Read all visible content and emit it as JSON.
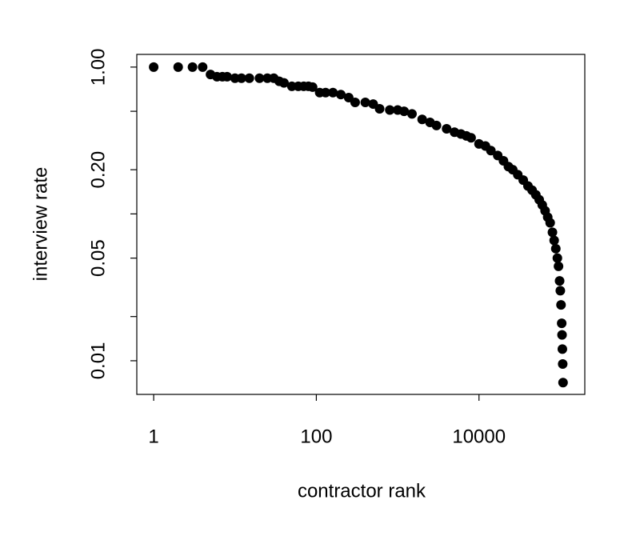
{
  "chart_data": {
    "type": "scatter",
    "xlabel": "contractor rank",
    "ylabel": "interview rate",
    "xlog": true,
    "ylog": true,
    "color": "#000000",
    "xlim": [
      0.62,
      200000
    ],
    "ylim": [
      0.0059,
      1.22
    ],
    "xticks": [
      1,
      100,
      10000
    ],
    "yticks": [
      {
        "value": 1,
        "label": "1.00"
      },
      {
        "value": 0.2,
        "label": "0.20"
      },
      0.05,
      0.01
    ],
    "yticks_minor": [
      0.5,
      0.1,
      0.02
    ],
    "x": [
      1,
      2,
      3,
      4,
      5,
      6,
      7,
      8,
      10,
      12,
      15,
      20,
      25,
      30,
      35,
      40,
      50,
      60,
      70,
      80,
      90,
      110,
      130,
      160,
      200,
      250,
      300,
      400,
      500,
      600,
      800,
      1000,
      1200,
      1500,
      2000,
      2500,
      3000,
      4000,
      5000,
      6000,
      7000,
      8000,
      10000,
      12000,
      14000,
      17000,
      20000,
      23000,
      26000,
      30000,
      35000,
      40000,
      45000,
      50000,
      55000,
      60000,
      65000,
      70000,
      75000,
      80000,
      84000,
      88000,
      92000,
      95000,
      98000,
      100000,
      102000,
      104000,
      105000,
      106000,
      107000,
      108000
    ],
    "values": [
      1,
      1,
      1,
      1,
      0.89,
      0.86,
      0.86,
      0.86,
      0.84,
      0.84,
      0.84,
      0.84,
      0.84,
      0.84,
      0.8,
      0.78,
      0.74,
      0.74,
      0.74,
      0.74,
      0.73,
      0.67,
      0.67,
      0.67,
      0.65,
      0.62,
      0.575,
      0.575,
      0.56,
      0.52,
      0.51,
      0.51,
      0.5,
      0.48,
      0.44,
      0.42,
      0.4,
      0.38,
      0.36,
      0.35,
      0.34,
      0.33,
      0.3,
      0.29,
      0.27,
      0.25,
      0.23,
      0.21,
      0.2,
      0.185,
      0.17,
      0.155,
      0.145,
      0.135,
      0.125,
      0.115,
      0.105,
      0.095,
      0.087,
      0.075,
      0.066,
      0.058,
      0.05,
      0.044,
      0.035,
      0.03,
      0.024,
      0.018,
      0.015,
      0.012,
      0.0095,
      0.0071
    ]
  }
}
